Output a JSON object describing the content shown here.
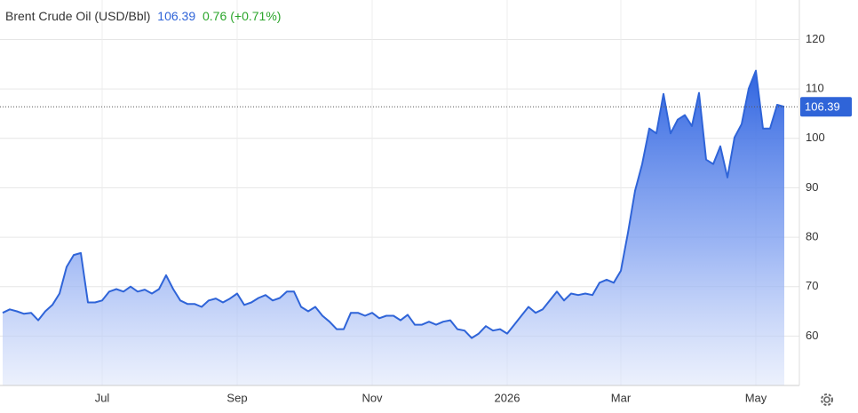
{
  "chart_data": {
    "type": "area",
    "title": "Brent Crude Oil (USD/Bbl)",
    "last": 106.39,
    "change": 0.76,
    "change_pct": "(+0.71%)",
    "color": "#2f64d8",
    "grid": true,
    "ylim": [
      50,
      128
    ],
    "yticks": [
      60,
      70,
      80,
      90,
      100,
      110,
      120
    ],
    "categories": [
      null,
      null,
      null,
      null,
      null,
      null,
      null,
      null,
      null,
      null,
      null,
      null,
      null,
      null,
      "Jul",
      null,
      null,
      null,
      null,
      null,
      null,
      null,
      null,
      null,
      null,
      null,
      null,
      null,
      null,
      null,
      null,
      null,
      null,
      "Sep",
      null,
      null,
      null,
      null,
      null,
      null,
      null,
      null,
      null,
      null,
      null,
      null,
      null,
      null,
      null,
      null,
      null,
      null,
      "Nov",
      null,
      null,
      null,
      null,
      null,
      null,
      null,
      null,
      null,
      null,
      null,
      null,
      null,
      null,
      null,
      null,
      null,
      null,
      "2026",
      null,
      null,
      null,
      null,
      null,
      null,
      null,
      null,
      null,
      null,
      null,
      null,
      null,
      null,
      null,
      "Mar",
      null,
      null,
      null,
      null,
      null,
      null,
      null,
      null,
      null,
      null,
      null,
      null,
      null,
      null,
      null,
      null,
      null,
      null,
      "May",
      null,
      null,
      null,
      null
    ],
    "values": [
      64.7,
      65.4,
      65.0,
      64.5,
      64.7,
      63.2,
      65.0,
      66.3,
      68.6,
      74.0,
      76.4,
      76.8,
      66.8,
      66.8,
      67.2,
      69.0,
      69.5,
      69.0,
      70.0,
      69.0,
      69.4,
      68.6,
      69.5,
      72.3,
      69.5,
      67.2,
      66.5,
      66.5,
      65.9,
      67.2,
      67.6,
      66.8,
      67.6,
      68.6,
      66.3,
      66.8,
      67.7,
      68.3,
      67.2,
      67.7,
      69.0,
      69.0,
      65.9,
      65.0,
      65.9,
      64.1,
      62.9,
      61.4,
      61.4,
      64.7,
      64.7,
      64.1,
      64.7,
      63.6,
      64.1,
      64.1,
      63.2,
      64.3,
      62.3,
      62.3,
      62.9,
      62.3,
      62.9,
      63.2,
      61.4,
      61.1,
      59.6,
      60.5,
      62.0,
      61.1,
      61.4,
      60.5,
      62.3,
      64.1,
      65.9,
      64.7,
      65.4,
      67.2,
      69.0,
      67.2,
      68.6,
      68.3,
      68.6,
      68.3,
      70.8,
      71.4,
      70.8,
      73.2,
      80.9,
      89.4,
      94.8,
      102.0,
      101.0,
      109.0,
      101.0,
      103.8,
      104.7,
      102.5,
      109.2,
      95.7,
      94.8,
      98.4,
      92.1,
      100.2,
      102.9,
      110.1,
      113.7,
      102.0,
      102.0,
      106.8,
      106.39
    ]
  }
}
